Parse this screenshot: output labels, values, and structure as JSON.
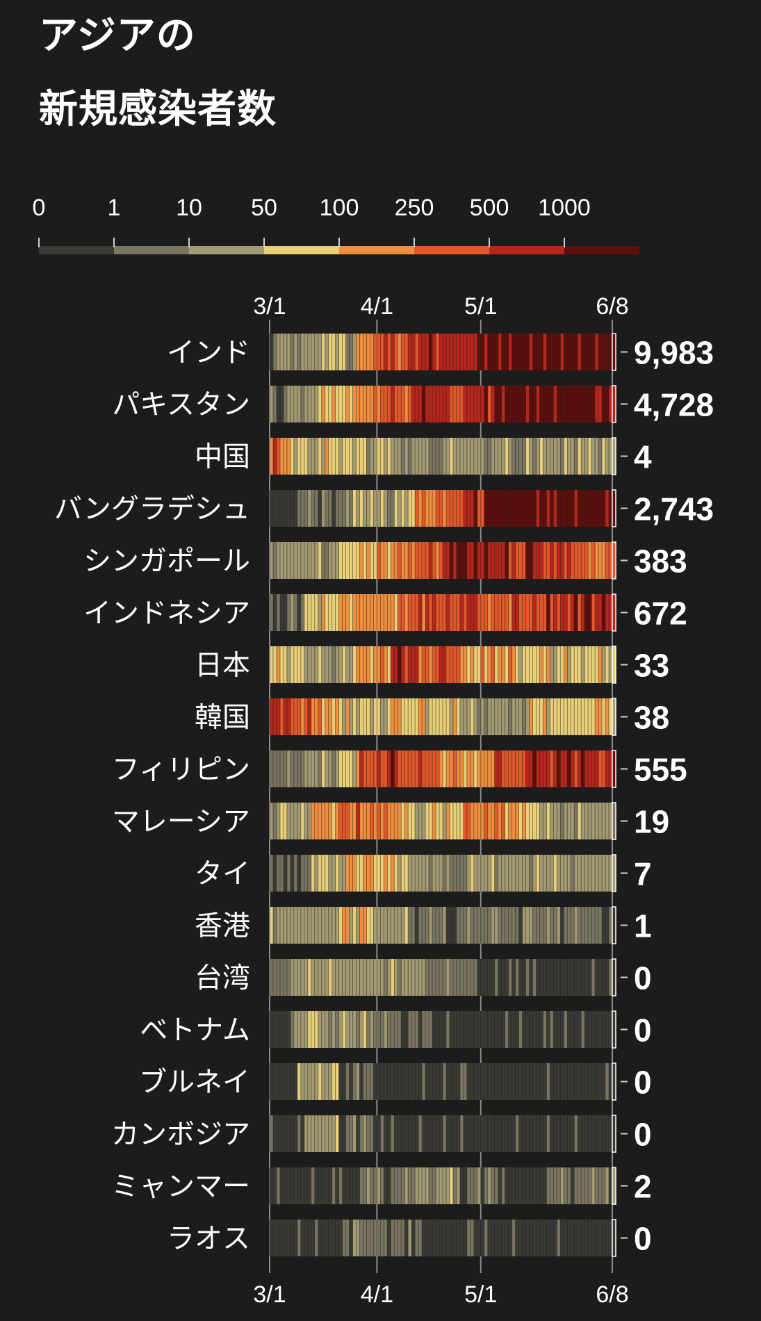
{
  "title_line1": "アジアの",
  "title_line2": "新規感染者数",
  "legend": {
    "labels": [
      "0",
      "1",
      "10",
      "50",
      "100",
      "250",
      "500",
      "1000"
    ],
    "colors": [
      "#3a3a35",
      "#7a7561",
      "#a29a72",
      "#e8cf78",
      "#ee8f3f",
      "#e3582a",
      "#b5261d",
      "#5c100d"
    ]
  },
  "chart_data": {
    "type": "heatmap",
    "x_start": "3/1",
    "x_end": "6/8",
    "x_ticks": [
      "3/1",
      "4/1",
      "5/1",
      "6/8"
    ],
    "rows": [
      {
        "name": "インド",
        "latest": "9,983",
        "segments": [
          [
            0,
            1
          ],
          [
            3,
            2
          ],
          [
            15,
            3
          ],
          [
            22,
            2
          ],
          [
            25,
            4
          ],
          [
            30,
            5
          ],
          [
            40,
            6
          ],
          [
            60,
            7
          ]
        ]
      },
      {
        "name": "パキスタン",
        "latest": "4,728",
        "segments": [
          [
            0,
            1
          ],
          [
            5,
            2
          ],
          [
            15,
            3
          ],
          [
            18,
            4
          ],
          [
            30,
            5
          ],
          [
            40,
            6
          ],
          [
            52,
            5
          ],
          [
            55,
            6
          ],
          [
            65,
            7
          ]
        ]
      },
      {
        "name": "中国",
        "latest": "4",
        "segments": [
          [
            0,
            5
          ],
          [
            2,
            4
          ],
          [
            6,
            3
          ],
          [
            14,
            3
          ],
          [
            28,
            2
          ],
          [
            50,
            2
          ],
          [
            62,
            2
          ],
          [
            66,
            2
          ]
        ]
      },
      {
        "name": "バングラデシュ",
        "latest": "2,743",
        "segments": [
          [
            0,
            0
          ],
          [
            8,
            1
          ],
          [
            22,
            2
          ],
          [
            36,
            3
          ],
          [
            40,
            4
          ],
          [
            48,
            5
          ],
          [
            56,
            6
          ],
          [
            62,
            7
          ],
          [
            78,
            7
          ]
        ]
      },
      {
        "name": "シンガポール",
        "latest": "383",
        "segments": [
          [
            0,
            2
          ],
          [
            20,
            3
          ],
          [
            30,
            4
          ],
          [
            42,
            5
          ],
          [
            50,
            6
          ],
          [
            54,
            7
          ],
          [
            57,
            6
          ],
          [
            72,
            6
          ],
          [
            80,
            5
          ]
        ]
      },
      {
        "name": "インドネシア",
        "latest": "672",
        "segments": [
          [
            0,
            1
          ],
          [
            10,
            3
          ],
          [
            20,
            4
          ],
          [
            28,
            4
          ],
          [
            40,
            5
          ],
          [
            55,
            6
          ],
          [
            60,
            5
          ],
          [
            80,
            6
          ]
        ]
      },
      {
        "name": "日本",
        "latest": "33",
        "segments": [
          [
            0,
            3
          ],
          [
            10,
            2
          ],
          [
            25,
            4
          ],
          [
            35,
            6
          ],
          [
            42,
            5
          ],
          [
            55,
            4
          ],
          [
            70,
            3
          ],
          [
            78,
            3
          ]
        ]
      },
      {
        "name": "韓国",
        "latest": "38",
        "segments": [
          [
            0,
            6
          ],
          [
            6,
            5
          ],
          [
            12,
            4
          ],
          [
            20,
            3
          ],
          [
            35,
            3
          ],
          [
            55,
            2
          ],
          [
            75,
            3
          ],
          [
            80,
            3
          ]
        ]
      },
      {
        "name": "フィリピン",
        "latest": "555",
        "segments": [
          [
            0,
            1
          ],
          [
            10,
            2
          ],
          [
            20,
            3
          ],
          [
            25,
            5
          ],
          [
            32,
            6
          ],
          [
            38,
            5
          ],
          [
            50,
            4
          ],
          [
            65,
            5
          ],
          [
            75,
            6
          ]
        ]
      },
      {
        "name": "マレーシア",
        "latest": "19",
        "segments": [
          [
            0,
            2
          ],
          [
            12,
            4
          ],
          [
            20,
            5
          ],
          [
            26,
            4
          ],
          [
            40,
            3
          ],
          [
            55,
            4
          ],
          [
            72,
            3
          ],
          [
            78,
            2
          ]
        ]
      },
      {
        "name": "タイ",
        "latest": "7",
        "segments": [
          [
            0,
            1
          ],
          [
            12,
            3
          ],
          [
            22,
            4
          ],
          [
            30,
            3
          ],
          [
            40,
            2
          ],
          [
            60,
            2
          ],
          [
            75,
            2
          ]
        ]
      },
      {
        "name": "香港",
        "latest": "1",
        "segments": [
          [
            0,
            2
          ],
          [
            20,
            3
          ],
          [
            30,
            2
          ],
          [
            40,
            1
          ],
          [
            60,
            1
          ],
          [
            80,
            1
          ]
        ]
      },
      {
        "name": "台湾",
        "latest": "0",
        "segments": [
          [
            0,
            1
          ],
          [
            6,
            2
          ],
          [
            20,
            2
          ],
          [
            32,
            2
          ],
          [
            45,
            1
          ],
          [
            60,
            0
          ],
          [
            80,
            0
          ]
        ]
      },
      {
        "name": "ベトナム",
        "latest": "0",
        "segments": [
          [
            0,
            0
          ],
          [
            6,
            2
          ],
          [
            20,
            2
          ],
          [
            30,
            1
          ],
          [
            45,
            0
          ],
          [
            65,
            0
          ],
          [
            80,
            0
          ]
        ]
      },
      {
        "name": "ブルネイ",
        "latest": "0",
        "segments": [
          [
            0,
            0
          ],
          [
            8,
            2
          ],
          [
            20,
            1
          ],
          [
            30,
            0
          ],
          [
            70,
            0
          ]
        ]
      },
      {
        "name": "カンボジア",
        "latest": "0",
        "segments": [
          [
            0,
            0
          ],
          [
            10,
            2
          ],
          [
            20,
            1
          ],
          [
            30,
            0
          ],
          [
            70,
            0
          ]
        ]
      },
      {
        "name": "ミャンマー",
        "latest": "2",
        "segments": [
          [
            0,
            0
          ],
          [
            25,
            1
          ],
          [
            40,
            2
          ],
          [
            55,
            1
          ],
          [
            70,
            0
          ],
          [
            80,
            1
          ]
        ]
      },
      {
        "name": "ラオス",
        "latest": "0",
        "segments": [
          [
            0,
            0
          ],
          [
            20,
            1
          ],
          [
            35,
            1
          ],
          [
            45,
            0
          ],
          [
            70,
            0
          ]
        ]
      }
    ]
  }
}
